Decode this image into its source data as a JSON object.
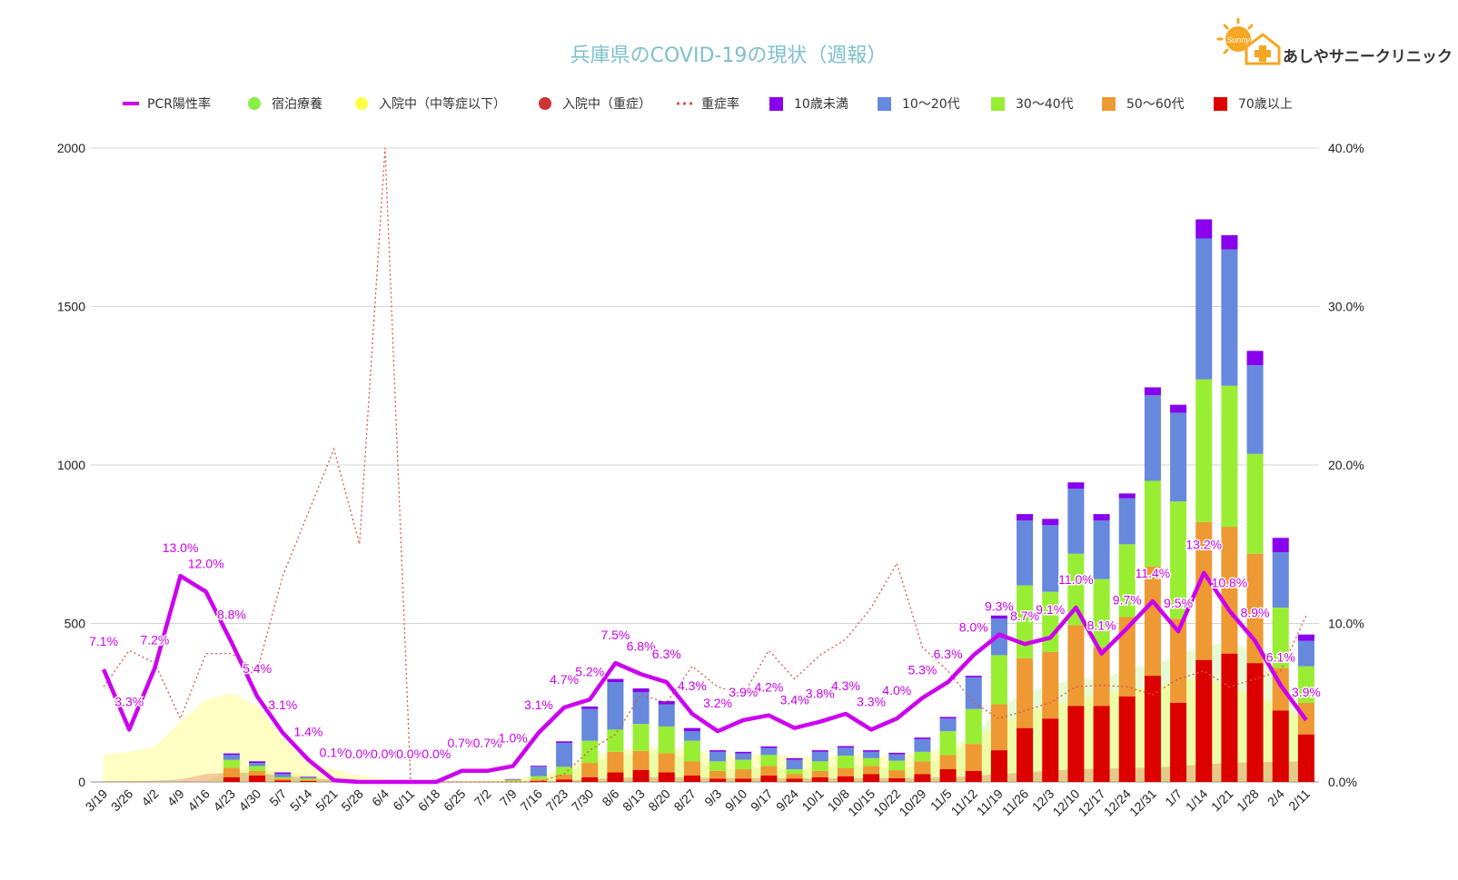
{
  "logo": {
    "text": "あしやサニークリニック",
    "badge": "Sunny"
  },
  "chart_data": {
    "type": "bar",
    "title": "兵庫県のCOVID-19の現状（週報）",
    "stacked": true,
    "categories": [
      "3/19",
      "3/26",
      "4/2",
      "4/9",
      "4/16",
      "4/23",
      "4/30",
      "5/7",
      "5/14",
      "5/21",
      "5/28",
      "6/4",
      "6/11",
      "6/18",
      "6/25",
      "7/2",
      "7/9",
      "7/16",
      "7/23",
      "7/30",
      "8/6",
      "8/13",
      "8/20",
      "8/27",
      "9/3",
      "9/10",
      "9/17",
      "9/24",
      "10/1",
      "10/8",
      "10/15",
      "10/22",
      "10/29",
      "11/5",
      "11/12",
      "11/19",
      "11/26",
      "12/3",
      "12/10",
      "12/17",
      "12/24",
      "12/31",
      "1/7",
      "1/14",
      "1/21",
      "1/28",
      "2/4",
      "2/11"
    ],
    "y_left": {
      "min": 0,
      "max": 2000,
      "ticks": [
        "0",
        "500",
        "1000",
        "1500",
        "2000"
      ]
    },
    "y_right": {
      "min": 0,
      "max": 40,
      "ticks": [
        "0.0%",
        "10.0%",
        "20.0%",
        "30.0%",
        "40.0%"
      ]
    },
    "grid": true,
    "legend_position": "top",
    "legend": [
      {
        "label": "PCR陽性率",
        "kind": "line",
        "color": "#cc00ee"
      },
      {
        "label": "宿泊療養",
        "kind": "dot",
        "color": "#88ee44"
      },
      {
        "label": "入院中（中等症以下）",
        "kind": "dot",
        "color": "#ffff44"
      },
      {
        "label": "入院中（重症）",
        "kind": "dot",
        "color": "#cc3333"
      },
      {
        "label": "重症率",
        "kind": "dotted",
        "color": "#dd5544"
      },
      {
        "label": "10歳未満",
        "kind": "square",
        "color": "#8800ee"
      },
      {
        "label": "10～20代",
        "kind": "square",
        "color": "#6688dd"
      },
      {
        "label": "30～40代",
        "kind": "square",
        "color": "#99ee33"
      },
      {
        "label": "50～60代",
        "kind": "square",
        "color": "#ee9933"
      },
      {
        "label": "70歳以上",
        "kind": "square",
        "color": "#dd0000"
      }
    ],
    "bar_series": [
      {
        "name": "70歳以上",
        "color": "#dd0000",
        "values": [
          0,
          0,
          0,
          0,
          0,
          15,
          20,
          5,
          3,
          0,
          0,
          0,
          0,
          0,
          0,
          0,
          0,
          3,
          8,
          15,
          30,
          38,
          30,
          20,
          10,
          10,
          20,
          10,
          15,
          18,
          25,
          12,
          25,
          40,
          35,
          100,
          170,
          200,
          240,
          240,
          270,
          335,
          250,
          385,
          405,
          375,
          225,
          150
        ]
      },
      {
        "name": "50～60代",
        "color": "#ee9933",
        "values": [
          0,
          0,
          0,
          0,
          0,
          30,
          15,
          5,
          3,
          0,
          0,
          0,
          0,
          0,
          0,
          0,
          2,
          5,
          15,
          45,
          65,
          60,
          60,
          45,
          25,
          30,
          30,
          15,
          20,
          25,
          25,
          25,
          40,
          45,
          85,
          145,
          220,
          210,
          255,
          185,
          250,
          345,
          265,
          435,
          400,
          345,
          135,
          100
        ]
      },
      {
        "name": "30～40代",
        "color": "#99ee33",
        "values": [
          0,
          0,
          0,
          0,
          0,
          25,
          15,
          5,
          5,
          0,
          0,
          0,
          0,
          0,
          0,
          0,
          4,
          10,
          25,
          70,
          70,
          85,
          85,
          65,
          30,
          30,
          35,
          15,
          30,
          40,
          25,
          30,
          30,
          75,
          110,
          155,
          230,
          190,
          225,
          215,
          230,
          270,
          370,
          450,
          445,
          315,
          190,
          115
        ]
      },
      {
        "name": "10～20代",
        "color": "#6688dd",
        "values": [
          0,
          0,
          0,
          0,
          0,
          15,
          10,
          10,
          3,
          0,
          0,
          0,
          0,
          0,
          0,
          0,
          2,
          30,
          75,
          100,
          150,
          100,
          70,
          30,
          30,
          20,
          22,
          30,
          30,
          25,
          20,
          20,
          40,
          40,
          100,
          115,
          205,
          210,
          205,
          185,
          145,
          270,
          280,
          445,
          430,
          280,
          175,
          80
        ]
      },
      {
        "name": "10歳未満",
        "color": "#8800ee",
        "values": [
          0,
          0,
          0,
          0,
          0,
          5,
          5,
          5,
          2,
          0,
          0,
          0,
          0,
          0,
          0,
          0,
          1,
          3,
          5,
          8,
          10,
          12,
          10,
          10,
          5,
          5,
          5,
          5,
          5,
          5,
          5,
          5,
          5,
          5,
          5,
          10,
          20,
          20,
          20,
          20,
          15,
          25,
          25,
          60,
          45,
          45,
          45,
          20
        ]
      }
    ],
    "area_series": [
      {
        "name": "宿泊療養",
        "color": "#88ee44",
        "values": [
          0,
          0,
          0,
          0,
          0,
          40,
          40,
          30,
          20,
          5,
          2,
          0,
          0,
          0,
          0,
          0,
          2,
          10,
          30,
          60,
          80,
          90,
          90,
          70,
          40,
          40,
          50,
          40,
          45,
          50,
          50,
          40,
          55,
          80,
          140,
          230,
          280,
          300,
          330,
          320,
          360,
          370,
          400,
          430,
          440,
          410,
          330,
          260
        ]
      },
      {
        "name": "入院中（中等症以下）",
        "color": "#ffff44",
        "values": [
          85,
          95,
          110,
          190,
          260,
          280,
          240,
          140,
          60,
          40,
          20,
          10,
          5,
          3,
          3,
          5,
          10,
          20,
          40,
          80,
          100,
          110,
          110,
          100,
          85,
          85,
          90,
          80,
          80,
          90,
          85,
          80,
          90,
          110,
          140,
          180,
          220,
          240,
          260,
          280,
          290,
          300,
          320,
          330,
          300,
          270,
          240,
          200
        ]
      },
      {
        "name": "入院中（重症）",
        "color": "#cc3333",
        "values": [
          2,
          3,
          4,
          8,
          25,
          30,
          28,
          20,
          12,
          6,
          3,
          2,
          1,
          1,
          1,
          1,
          1,
          2,
          4,
          8,
          12,
          15,
          15,
          14,
          12,
          12,
          12,
          11,
          11,
          12,
          12,
          12,
          13,
          15,
          18,
          25,
          30,
          35,
          40,
          42,
          44,
          45,
          50,
          55,
          60,
          62,
          64,
          65
        ]
      }
    ],
    "line_series": [
      {
        "name": "PCR陽性率",
        "axis": "right",
        "color": "#cc00ee",
        "values": [
          7.1,
          3.3,
          7.2,
          13.0,
          12.0,
          8.8,
          5.4,
          3.1,
          1.4,
          0.1,
          0.0,
          0.0,
          0.0,
          0.0,
          0.7,
          0.7,
          1.0,
          3.1,
          4.7,
          5.2,
          7.5,
          6.8,
          6.3,
          4.3,
          3.2,
          3.9,
          4.2,
          3.4,
          3.8,
          4.3,
          3.3,
          4.0,
          5.3,
          6.3,
          8.0,
          9.3,
          8.7,
          9.1,
          11.0,
          8.1,
          9.7,
          11.4,
          9.5,
          13.2,
          10.8,
          8.9,
          6.1,
          3.9
        ],
        "labels": [
          "7.1%",
          "3.3%",
          "7.2%",
          "13.0%",
          "12.0%",
          "8.8%",
          "5.4%",
          "3.1%",
          "1.4%",
          "0.1%",
          "0.0%",
          "0.0%",
          "0.0%",
          "0.0%",
          "0.7%",
          "0.7%",
          "1.0%",
          "3.1%",
          "4.7%",
          "5.2%",
          "7.5%",
          "6.8%",
          "6.3%",
          "4.3%",
          "3.2%",
          "3.9%",
          "4.2%",
          "3.4%",
          "3.8%",
          "4.3%",
          "3.3%",
          "4.0%",
          "5.3%",
          "6.3%",
          "8.0%",
          "9.3%",
          "8.7%",
          "9.1%",
          "11.0%",
          "8.1%",
          "9.7%",
          "11.4%",
          "9.5%",
          "13.2%",
          "10.8%",
          "8.9%",
          "6.1%",
          "3.9%"
        ]
      },
      {
        "name": "重症率",
        "axis": "right",
        "color": "#dd5544",
        "style": "dotted",
        "values": [
          6.0,
          8.3,
          7.5,
          4.0,
          8.1,
          8.1,
          7.0,
          13.0,
          17.0,
          21.0,
          15.0,
          40.0,
          0,
          0,
          0,
          0,
          0,
          0,
          0.5,
          2.0,
          3.0,
          5.5,
          5.0,
          7.3,
          6.0,
          5.5,
          8.3,
          6.5,
          8.0,
          9.0,
          11.0,
          13.8,
          8.5,
          7.0,
          5.0,
          4.0,
          4.5,
          5.0,
          6.0,
          6.1,
          6.0,
          5.5,
          6.5,
          7.0,
          6.0,
          6.5,
          7.0,
          10.5
        ]
      }
    ]
  }
}
